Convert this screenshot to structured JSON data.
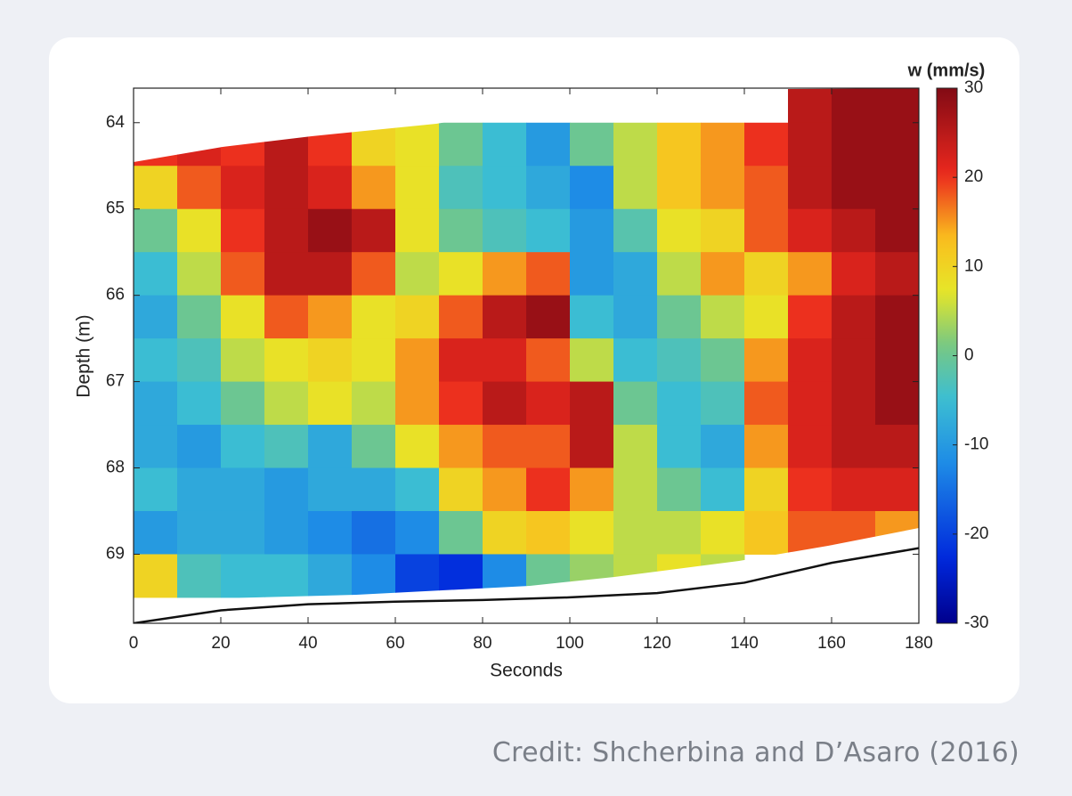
{
  "chart_data": {
    "type": "heatmap",
    "xlabel": "Seconds",
    "ylabel": "Depth (m)",
    "colorbar_title": "w (mm/s)",
    "colormap": "jet",
    "x_bins": [
      0,
      10,
      20,
      30,
      40,
      50,
      60,
      70,
      80,
      90,
      100,
      110,
      120,
      130,
      140,
      150,
      160,
      170,
      180
    ],
    "y_bins": [
      63.5,
      64,
      64.5,
      65,
      65.5,
      66,
      66.5,
      67,
      67.5,
      68,
      68.5,
      69,
      69.5
    ],
    "values": [
      [
        null,
        null,
        null,
        null,
        null,
        null,
        null,
        null,
        null,
        null,
        null,
        null,
        null,
        null,
        null,
        25,
        28,
        28
      ],
      [
        20,
        22,
        20,
        25,
        20,
        10,
        8,
        0,
        -5,
        -10,
        0,
        5,
        12,
        15,
        20,
        25,
        28,
        28
      ],
      [
        10,
        18,
        22,
        25,
        22,
        15,
        8,
        -3,
        -5,
        -8,
        -12,
        5,
        12,
        15,
        18,
        25,
        28,
        28
      ],
      [
        0,
        8,
        20,
        25,
        28,
        25,
        8,
        0,
        -3,
        -5,
        -10,
        -2,
        8,
        10,
        18,
        22,
        25,
        28
      ],
      [
        -5,
        5,
        18,
        25,
        25,
        18,
        5,
        8,
        15,
        18,
        -10,
        -8,
        5,
        15,
        10,
        15,
        22,
        25
      ],
      [
        -8,
        0,
        8,
        18,
        15,
        8,
        10,
        18,
        25,
        28,
        -5,
        -8,
        0,
        5,
        8,
        20,
        25,
        28
      ],
      [
        -5,
        -3,
        5,
        8,
        10,
        8,
        15,
        22,
        22,
        18,
        5,
        -5,
        -3,
        0,
        15,
        22,
        25,
        28
      ],
      [
        -8,
        -5,
        0,
        5,
        8,
        5,
        15,
        20,
        25,
        22,
        25,
        0,
        -5,
        -3,
        18,
        22,
        25,
        28
      ],
      [
        -8,
        -10,
        -5,
        -3,
        -8,
        0,
        8,
        15,
        18,
        18,
        25,
        5,
        -5,
        -8,
        15,
        22,
        25,
        25
      ],
      [
        -5,
        -8,
        -8,
        -10,
        -8,
        -8,
        -5,
        10,
        15,
        20,
        15,
        5,
        0,
        -5,
        10,
        20,
        22,
        22
      ],
      [
        -10,
        -8,
        -8,
        -10,
        -12,
        -15,
        -12,
        0,
        10,
        12,
        8,
        5,
        5,
        8,
        12,
        18,
        18,
        15
      ],
      [
        10,
        -3,
        -5,
        -5,
        -8,
        -12,
        -20,
        -22,
        -12,
        0,
        3,
        5,
        8,
        5,
        null,
        null,
        null,
        null
      ]
    ],
    "line": {
      "x": [
        0,
        20,
        40,
        60,
        80,
        100,
        120,
        140,
        160,
        180
      ],
      "values": [
        69.8,
        69.65,
        69.58,
        69.55,
        69.53,
        69.5,
        69.45,
        69.33,
        69.1,
        68.93
      ],
      "color": "#111111"
    },
    "xlim": [
      0,
      180
    ],
    "xticks": [
      0,
      20,
      40,
      60,
      80,
      100,
      120,
      140,
      160,
      180
    ],
    "ylim": [
      63.6,
      69.8
    ],
    "yticks": [
      64,
      65,
      66,
      67,
      68,
      69
    ],
    "y_reversed": true,
    "clim": [
      -30,
      30
    ],
    "cticks": [
      -30,
      -20,
      -10,
      0,
      10,
      20,
      30
    ]
  },
  "credit": "Credit: Shcherbina and D’Asaro (2016)"
}
